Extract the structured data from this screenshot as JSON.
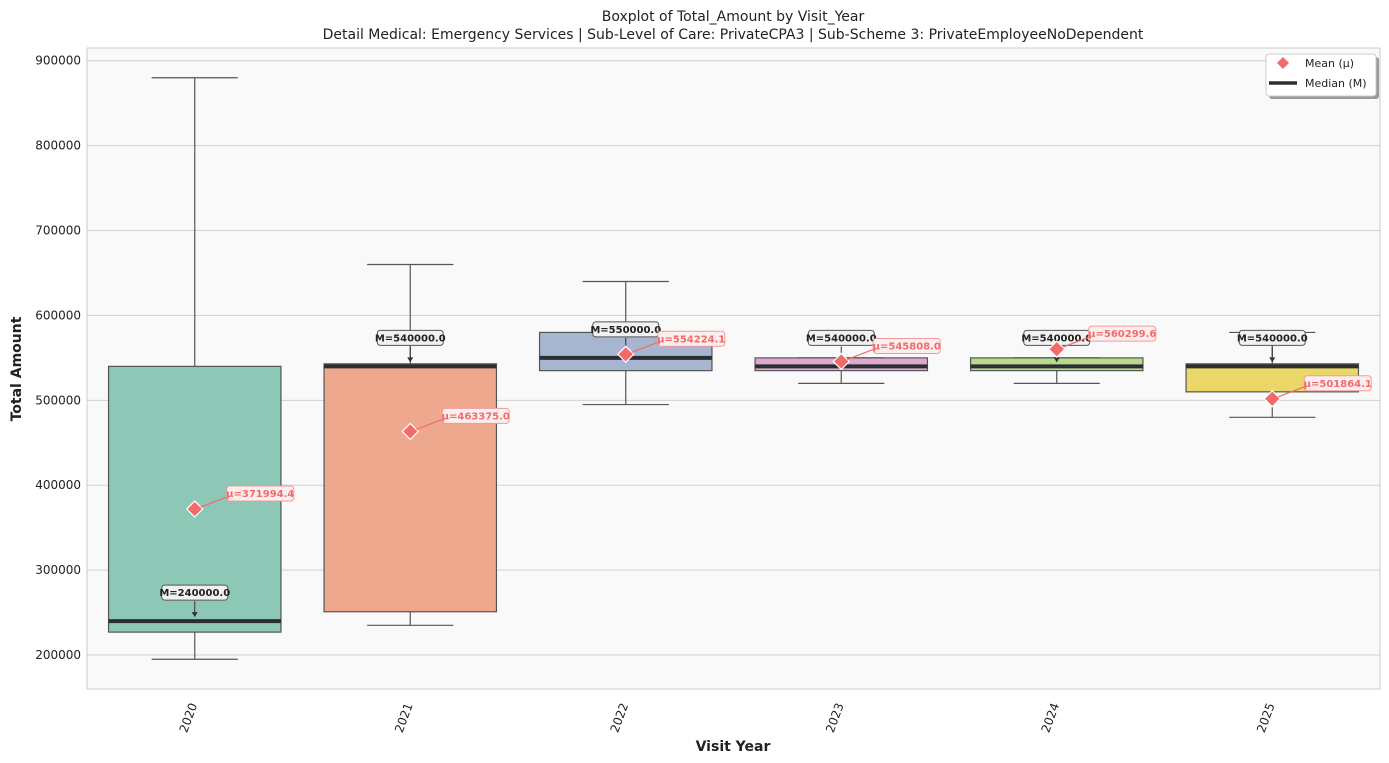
{
  "chart_data": {
    "type": "box",
    "title": "Boxplot of Total_Amount by Visit_Year",
    "subtitle": "Detail Medical: Emergency Services | Sub-Level of Care: PrivateCPA3 | Sub-Scheme 3: PrivateEmployeeNoDependent",
    "xlabel": "Visit Year",
    "ylabel": "Total Amount",
    "ylim": [
      160000,
      915000
    ],
    "yticks": [
      200000,
      300000,
      400000,
      500000,
      600000,
      700000,
      800000,
      900000
    ],
    "ytick_labels": [
      "200000",
      "300000",
      "400000",
      "500000",
      "600000",
      "700000",
      "800000",
      "900000"
    ],
    "grid": "horizontal",
    "background": "#f9f9f9",
    "legend": {
      "placement": "top-right",
      "entries": [
        {
          "label": "Mean (μ)",
          "marker": "diamond",
          "color": "#f26b6b"
        },
        {
          "label": "Median (M)",
          "marker": "line",
          "color": "#2b2f33"
        }
      ]
    },
    "categories": [
      "2020",
      "2021",
      "2022",
      "2023",
      "2024",
      "2025"
    ],
    "boxes": [
      {
        "category": "2020",
        "whisker_low": 195000,
        "q1": 227000,
        "median": 240000,
        "q3": 540000,
        "whisker_high": 880000,
        "mean": 371994.4,
        "color": "#8dc7b5",
        "median_label": "M=240000.0",
        "mean_label": "μ=371994.4"
      },
      {
        "category": "2021",
        "whisker_low": 235000,
        "q1": 251000,
        "median": 540000,
        "q3": 543000,
        "whisker_high": 660000,
        "mean": 463375.0,
        "color": "#eea88e",
        "median_label": "M=540000.0",
        "mean_label": "μ=463375.0"
      },
      {
        "category": "2022",
        "whisker_low": 495000,
        "q1": 535000,
        "median": 550000,
        "q3": 580000,
        "whisker_high": 640000,
        "mean": 554224.1,
        "color": "#a8b5d1",
        "median_label": "M=550000.0",
        "mean_label": "μ=554224.1"
      },
      {
        "category": "2023",
        "whisker_low": 520000,
        "q1": 535000,
        "median": 540000,
        "q3": 550000,
        "whisker_high": 550000,
        "mean": 545808.0,
        "color": "#e1a8cf",
        "median_label": "M=540000.0",
        "mean_label": "μ=545808.0"
      },
      {
        "category": "2024",
        "whisker_low": 520000,
        "q1": 535000,
        "median": 540000,
        "q3": 550000,
        "whisker_high": 550000,
        "mean": 560299.6,
        "color": "#b7d98b",
        "median_label": "M=540000.0",
        "mean_label": "μ=560299.6"
      },
      {
        "category": "2025",
        "whisker_low": 480000,
        "q1": 510000,
        "median": 540000,
        "q3": 543000,
        "whisker_high": 580000,
        "mean": 501864.1,
        "color": "#ead768",
        "median_label": "M=540000.0",
        "mean_label": "μ=501864.1"
      }
    ]
  }
}
